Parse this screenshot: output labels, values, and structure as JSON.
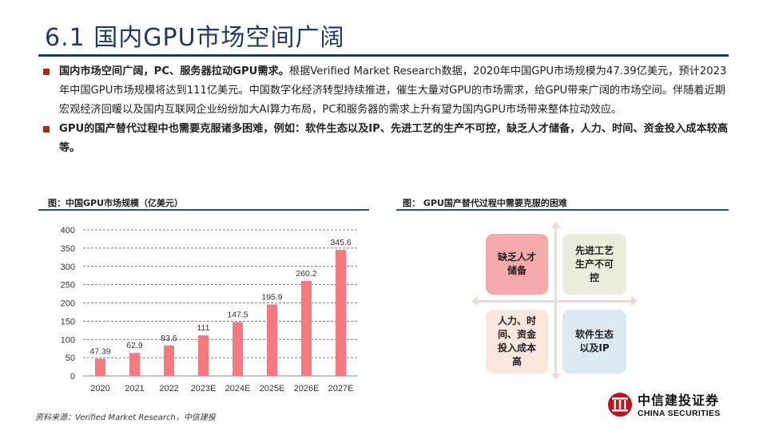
{
  "header": {
    "title": "6.1 国内GPU市场空间广阔"
  },
  "bullets": [
    {
      "bold": "国内市场空间广阔，PC、服务器拉动GPU需求。",
      "text": "根据Verified Market Research数据，2020年中国GPU市场规模为47.39亿美元，预计2023年中国GPU市场规模将达到111亿美元。中国数字化经济转型持续推进，催生大量对GPU的市场需求，给GPU带来广阔的市场空间。伴随着近期宏观经济回暖以及国内互联网企业纷纷加大AI算力布局，PC和服务器的需求上升有望为国内GPU市场带来整体拉动效应。"
    },
    {
      "bold": "GPU的国产替代过程中也需要克服诸多困难，例如：软件生态以及IP、先进工艺的生产不可控，缺乏人才储备，人力、时间、资金投入成本较高等。",
      "text": ""
    }
  ],
  "figures": {
    "left_label": "图：中国GPU市场规模（亿美元）",
    "right_label": "图： GPU国产替代过程中需要克服的困难"
  },
  "chart_data": {
    "type": "bar",
    "categories": [
      "2020",
      "2021",
      "2022",
      "2023E",
      "2024E",
      "2025E",
      "2026E",
      "2027E"
    ],
    "values": [
      47.39,
      62.9,
      83.6,
      111,
      147.5,
      195.9,
      260.2,
      345.6
    ],
    "value_labels": [
      "47.39",
      "62.9",
      "83.6",
      "111",
      "147.5",
      "195.9",
      "260.2",
      "345.6"
    ],
    "ylim": [
      0,
      400
    ],
    "yticks": [
      0,
      50,
      100,
      150,
      200,
      250,
      300,
      350,
      400
    ],
    "grid": true,
    "bar_color": "#f47a80"
  },
  "quadrants": {
    "top_left": {
      "label": "缺乏人才储备",
      "color": "#f6a9aa"
    },
    "top_right": {
      "label": "先进工艺生产不可控",
      "color": "#eaeddb"
    },
    "bottom_left": {
      "label": "人力、时间、资金投入成本高",
      "color": "#fbe6dd"
    },
    "bottom_right": {
      "label": "软件生态以及IP",
      "color": "#dde9f1"
    }
  },
  "footer": {
    "source": "资料来源：Verified Market Research，中信建投",
    "logo_cn": "中信建投证券",
    "logo_en": "CHINA SECURITIES"
  },
  "colors": {
    "title": "#1f3b63",
    "bullet_square": "#b3261e",
    "logo_red": "#c0131b"
  }
}
